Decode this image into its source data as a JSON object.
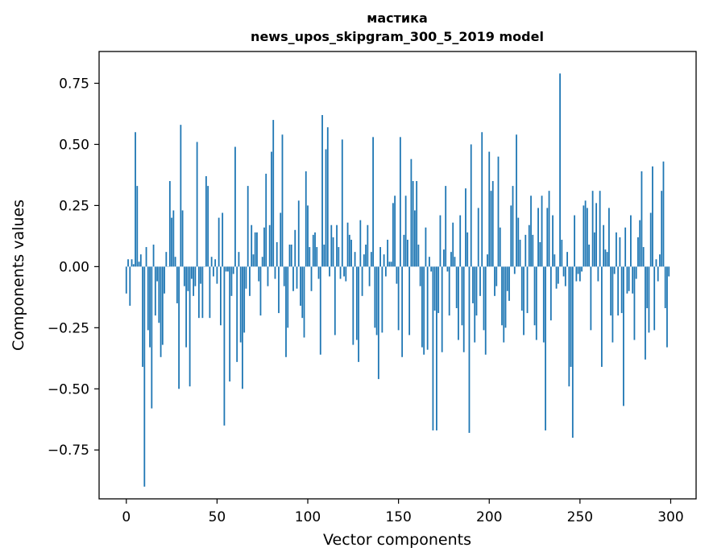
{
  "chart_data": {
    "type": "bar",
    "title": "мастика",
    "subtitle": "news_upos_skipgram_300_5_2019 model",
    "xlabel": "Vector components",
    "ylabel": "Components values",
    "xlim": [
      -15,
      314
    ],
    "ylim": [
      -0.95,
      0.88
    ],
    "xticks": [
      0,
      50,
      100,
      150,
      200,
      250,
      300
    ],
    "xtick_labels": [
      "0",
      "50",
      "100",
      "150",
      "200",
      "250",
      "300"
    ],
    "yticks": [
      -0.75,
      -0.5,
      -0.25,
      0.0,
      0.25,
      0.5,
      0.75
    ],
    "ytick_labels": [
      "−0.75",
      "−0.50",
      "−0.25",
      "0.00",
      "0.25",
      "0.50",
      "0.75"
    ],
    "bar_color": "#1f77b4",
    "values": [
      -0.11,
      0.03,
      -0.16,
      0.03,
      0.01,
      0.55,
      0.33,
      0.02,
      0.05,
      -0.41,
      -0.9,
      0.08,
      -0.26,
      -0.33,
      -0.58,
      0.09,
      -0.2,
      -0.06,
      -0.23,
      -0.37,
      -0.32,
      -0.11,
      0.06,
      0.0,
      0.35,
      0.2,
      0.23,
      0.04,
      -0.15,
      -0.5,
      0.58,
      0.23,
      -0.08,
      -0.33,
      -0.1,
      -0.49,
      -0.05,
      -0.12,
      -0.08,
      0.51,
      -0.21,
      -0.07,
      -0.21,
      0.0,
      0.37,
      0.33,
      -0.21,
      0.04,
      -0.04,
      0.03,
      -0.07,
      0.2,
      -0.24,
      0.22,
      -0.65,
      -0.02,
      -0.02,
      -0.47,
      -0.12,
      -0.03,
      0.49,
      -0.39,
      0.06,
      -0.31,
      -0.5,
      -0.27,
      -0.09,
      0.33,
      -0.12,
      0.17,
      0.05,
      0.14,
      0.14,
      -0.06,
      -0.2,
      0.04,
      0.16,
      0.38,
      -0.08,
      0.17,
      0.47,
      0.6,
      -0.05,
      0.1,
      -0.19,
      0.22,
      0.54,
      -0.08,
      -0.37,
      -0.25,
      0.09,
      0.09,
      -0.1,
      0.15,
      -0.09,
      0.27,
      -0.16,
      -0.21,
      -0.29,
      0.39,
      0.25,
      0.08,
      -0.1,
      0.13,
      0.14,
      0.08,
      -0.05,
      -0.36,
      0.62,
      0.09,
      0.48,
      0.57,
      -0.04,
      0.17,
      0.12,
      -0.28,
      0.17,
      0.08,
      -0.05,
      0.52,
      -0.04,
      -0.06,
      0.18,
      0.13,
      0.11,
      -0.32,
      0.06,
      -0.3,
      -0.39,
      0.19,
      -0.12,
      0.05,
      0.09,
      0.17,
      -0.08,
      0.06,
      0.53,
      -0.25,
      -0.28,
      -0.46,
      0.08,
      -0.27,
      0.05,
      -0.04,
      0.11,
      0.02,
      0.02,
      0.26,
      0.29,
      -0.07,
      -0.26,
      0.53,
      -0.37,
      0.13,
      0.29,
      0.11,
      -0.28,
      0.44,
      0.35,
      0.23,
      0.35,
      0.09,
      -0.08,
      -0.33,
      -0.36,
      0.16,
      -0.34,
      0.04,
      -0.02,
      -0.67,
      -0.18,
      -0.67,
      -0.19,
      0.21,
      -0.35,
      0.07,
      0.33,
      -0.02,
      -0.2,
      0.06,
      0.18,
      0.04,
      -0.17,
      -0.3,
      0.21,
      -0.24,
      -0.35,
      0.32,
      0.14,
      -0.68,
      0.5,
      -0.15,
      -0.31,
      -0.2,
      0.24,
      -0.12,
      0.55,
      -0.26,
      -0.36,
      0.05,
      0.47,
      0.31,
      0.35,
      -0.12,
      -0.08,
      0.45,
      0.16,
      -0.24,
      -0.31,
      -0.25,
      -0.1,
      -0.14,
      0.25,
      0.33,
      -0.03,
      0.54,
      0.2,
      0.11,
      -0.18,
      -0.28,
      0.13,
      -0.19,
      0.17,
      0.29,
      0.13,
      -0.24,
      -0.3,
      0.24,
      0.1,
      0.29,
      -0.31,
      -0.67,
      0.24,
      0.31,
      -0.22,
      0.21,
      0.05,
      -0.09,
      -0.07,
      0.79,
      0.11,
      -0.04,
      -0.08,
      0.06,
      -0.49,
      -0.41,
      -0.7,
      0.21,
      -0.06,
      -0.03,
      -0.06,
      -0.02,
      0.25,
      0.27,
      0.24,
      0.09,
      -0.26,
      0.31,
      0.14,
      0.26,
      -0.06,
      0.31,
      -0.41,
      0.17,
      0.07,
      0.06,
      0.24,
      -0.2,
      -0.31,
      -0.03,
      0.14,
      -0.2,
      0.12,
      -0.19,
      -0.57,
      0.16,
      -0.11,
      -0.1,
      0.21,
      -0.11,
      -0.3,
      -0.05,
      0.12,
      0.19,
      0.39,
      0.08,
      -0.38,
      -0.17,
      -0.27,
      0.22,
      0.41,
      -0.26,
      0.03,
      -0.06,
      0.05,
      0.31,
      0.43,
      -0.17,
      -0.33,
      -0.04
    ]
  }
}
